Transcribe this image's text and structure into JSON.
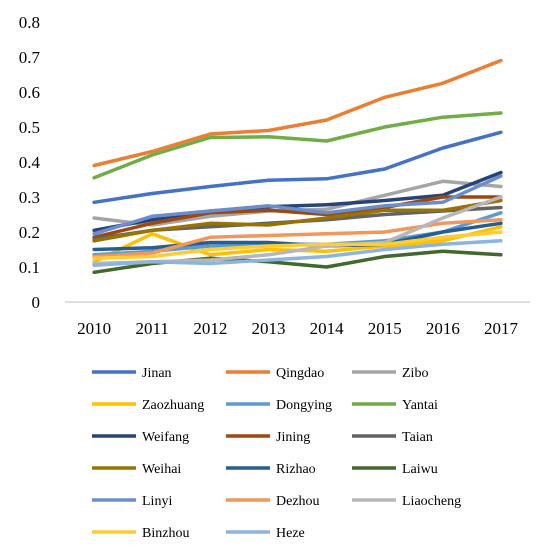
{
  "chart_data": {
    "type": "line",
    "x": [
      "2010",
      "2011",
      "2012",
      "2013",
      "2014",
      "2015",
      "2016",
      "2017"
    ],
    "ylim": [
      0,
      0.8
    ],
    "yticks": [
      "0",
      "0.1",
      "0.2",
      "0.3",
      "0.4",
      "0.5",
      "0.6",
      "0.7",
      "0.8"
    ],
    "grid": false,
    "legend_position": "bottom",
    "title": "",
    "xlabel": "",
    "ylabel": "",
    "series": [
      {
        "name": "Jinan",
        "color": "#4472C4",
        "values": [
          0.285,
          0.31,
          0.33,
          0.348,
          0.352,
          0.38,
          0.44,
          0.485
        ]
      },
      {
        "name": "Qingdao",
        "color": "#ED7D31",
        "values": [
          0.39,
          0.43,
          0.48,
          0.49,
          0.52,
          0.585,
          0.625,
          0.69
        ]
      },
      {
        "name": "Zibo",
        "color": "#A5A5A5",
        "values": [
          0.24,
          0.22,
          0.245,
          0.26,
          0.265,
          0.305,
          0.345,
          0.33
        ]
      },
      {
        "name": "Zaozhuang",
        "color": "#FFC000",
        "values": [
          0.115,
          0.195,
          0.135,
          0.15,
          0.145,
          0.16,
          0.175,
          0.215
        ]
      },
      {
        "name": "Dongying",
        "color": "#5B9BD5",
        "values": [
          0.135,
          0.145,
          0.16,
          0.165,
          0.165,
          0.175,
          0.2,
          0.255
        ]
      },
      {
        "name": "Yantai",
        "color": "#70AD47",
        "values": [
          0.355,
          0.42,
          0.47,
          0.472,
          0.46,
          0.5,
          0.528,
          0.54
        ]
      },
      {
        "name": "Weifang",
        "color": "#264478",
        "values": [
          0.205,
          0.235,
          0.26,
          0.272,
          0.278,
          0.29,
          0.305,
          0.37
        ]
      },
      {
        "name": "Jining",
        "color": "#9E480E",
        "values": [
          0.185,
          0.225,
          0.255,
          0.262,
          0.25,
          0.27,
          0.3,
          0.3
        ]
      },
      {
        "name": "Taian",
        "color": "#636363",
        "values": [
          0.18,
          0.205,
          0.215,
          0.225,
          0.235,
          0.25,
          0.26,
          0.27
        ]
      },
      {
        "name": "Weihai",
        "color": "#997300",
        "values": [
          0.175,
          0.205,
          0.225,
          0.22,
          0.24,
          0.262,
          0.262,
          0.29
        ]
      },
      {
        "name": "Rizhao",
        "color": "#255E91",
        "values": [
          0.15,
          0.155,
          0.17,
          0.17,
          0.16,
          0.165,
          0.2,
          0.225
        ]
      },
      {
        "name": "Laiwu",
        "color": "#43682B",
        "values": [
          0.085,
          0.11,
          0.125,
          0.115,
          0.1,
          0.13,
          0.145,
          0.135
        ]
      },
      {
        "name": "Linyi",
        "color": "#698ED0",
        "values": [
          0.195,
          0.245,
          0.26,
          0.275,
          0.255,
          0.275,
          0.285,
          0.36
        ]
      },
      {
        "name": "Dezhou",
        "color": "#F1975A",
        "values": [
          0.13,
          0.14,
          0.185,
          0.19,
          0.195,
          0.2,
          0.225,
          0.235
        ]
      },
      {
        "name": "Liaocheng",
        "color": "#B7B7B7",
        "values": [
          0.11,
          0.115,
          0.12,
          0.135,
          0.16,
          0.17,
          0.24,
          0.3
        ]
      },
      {
        "name": "Binzhou",
        "color": "#FFCD33",
        "values": [
          0.125,
          0.13,
          0.15,
          0.16,
          0.165,
          0.165,
          0.185,
          0.2
        ]
      },
      {
        "name": "Heze",
        "color": "#8CB4DF",
        "values": [
          0.105,
          0.115,
          0.11,
          0.12,
          0.13,
          0.15,
          0.165,
          0.175
        ]
      }
    ]
  }
}
